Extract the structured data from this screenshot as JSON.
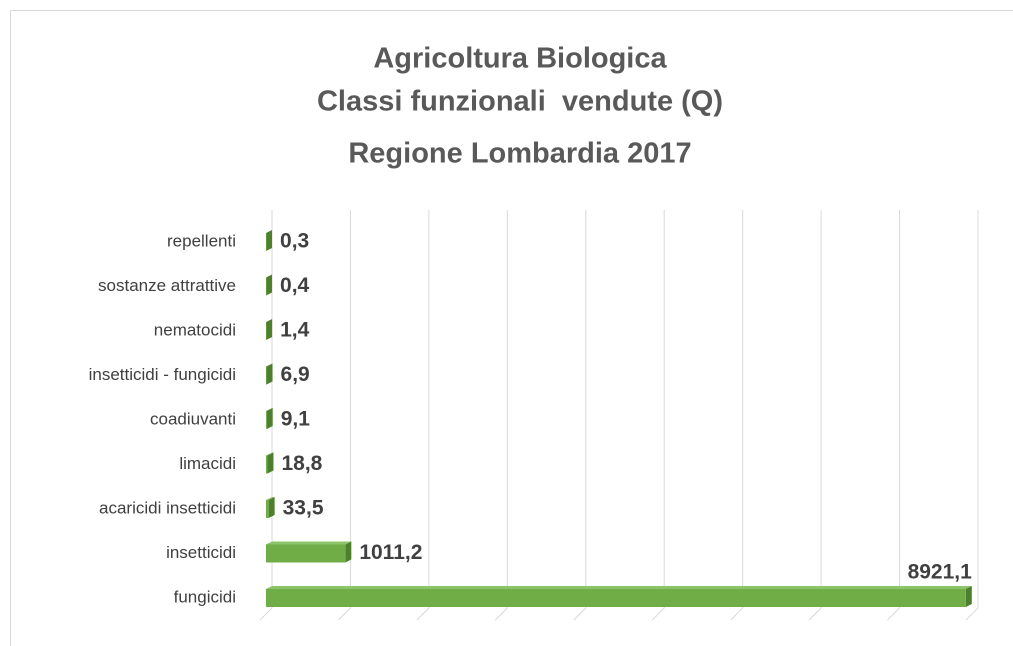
{
  "chart_data": {
    "type": "bar",
    "orientation": "horizontal",
    "title": [
      "Agricoltura Biologica",
      "Classi funzionali  vendute (Q)",
      "Regione Lombardia 2017"
    ],
    "categories": [
      "repellenti",
      "sostanze attrattive",
      "nematocidi",
      "insetticidi - fungicidi",
      "coadiuvanti",
      "limacidi",
      "acaricidi insetticidi",
      "insetticidi",
      "fungicidi"
    ],
    "values": [
      0.3,
      0.4,
      1.4,
      6.9,
      9.1,
      18.8,
      33.5,
      1011.2,
      8921.1
    ],
    "value_labels": [
      "0,3",
      "0,4",
      "1,4",
      "6,9",
      "9,1",
      "18,8",
      "33,5",
      "1011,2",
      "8921,1"
    ],
    "color": "#70ad47",
    "xlim": [
      0,
      9000
    ],
    "xticks": [
      0,
      1000,
      2000,
      3000,
      4000,
      5000,
      6000,
      7000,
      8000,
      9000
    ],
    "grid": true
  }
}
